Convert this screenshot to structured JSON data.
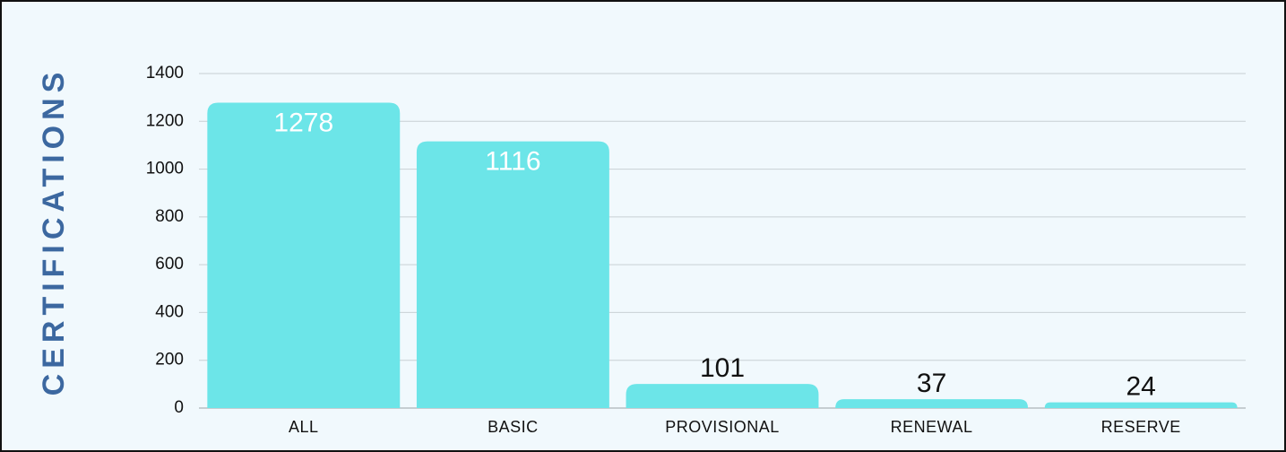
{
  "chart_data": {
    "type": "bar",
    "y_label": "CERTIFICATIONS",
    "categories": [
      "ALL",
      "BASIC",
      "PROVISIONAL",
      "RENEWAL",
      "RESERVE"
    ],
    "values": [
      1278,
      1116,
      101,
      37,
      24
    ],
    "color": "#6ce5e8",
    "ylim": [
      0,
      1400
    ],
    "yticks": [
      0,
      200,
      400,
      600,
      800,
      1000,
      1200,
      1400
    ],
    "grid": true
  }
}
